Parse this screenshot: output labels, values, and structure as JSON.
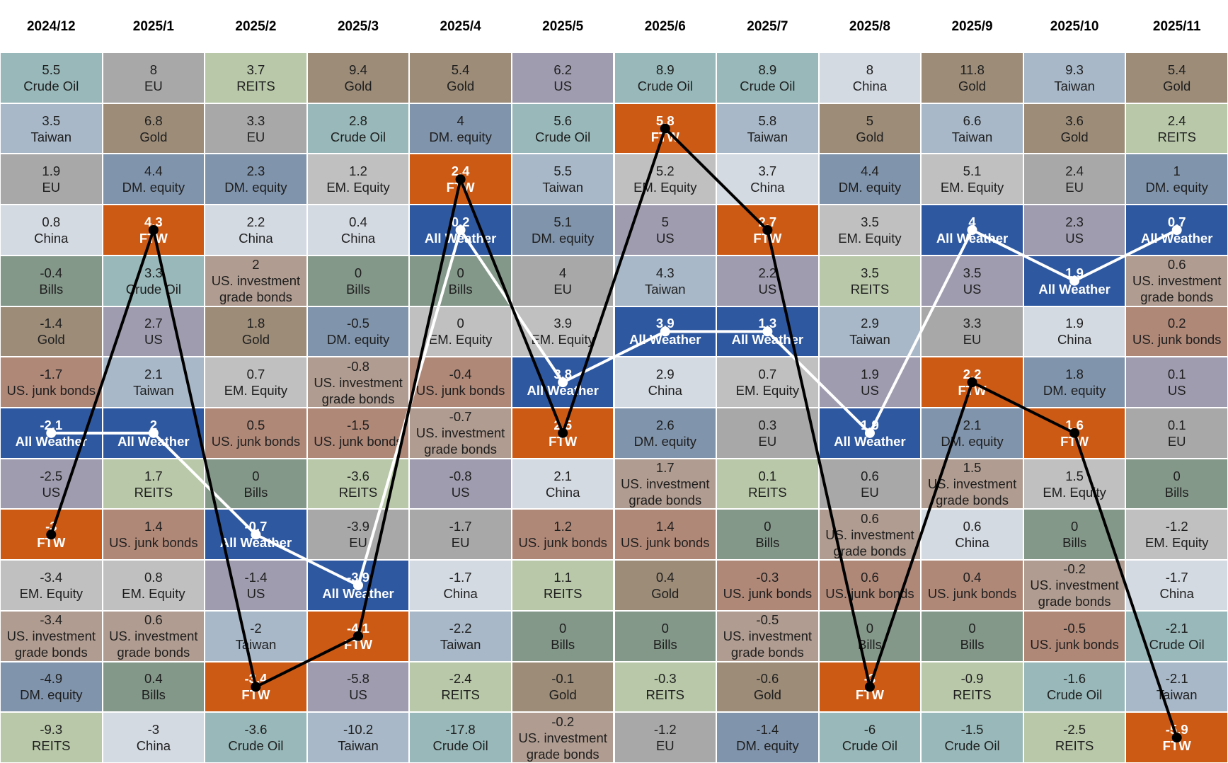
{
  "chart_data": {
    "type": "table",
    "title": "",
    "months": [
      "2024/12",
      "2025/1",
      "2025/2",
      "2025/3",
      "2025/4",
      "2025/5",
      "2025/6",
      "2025/7",
      "2025/8",
      "2025/9",
      "2025/10",
      "2025/11"
    ],
    "ranking_note": "each column is sorted from highest to lowest monthly return",
    "columns": [
      [
        [
          "5.5",
          "Crude Oil"
        ],
        [
          "3.5",
          "Taiwan"
        ],
        [
          "1.9",
          "EU"
        ],
        [
          "0.8",
          "China"
        ],
        [
          "-0.4",
          "Bills"
        ],
        [
          "-1.4",
          "Gold"
        ],
        [
          "-1.7",
          "US. junk bonds"
        ],
        [
          "-2.1",
          "All Weather"
        ],
        [
          "-2.5",
          "US"
        ],
        [
          "-3",
          "FTW"
        ],
        [
          "-3.4",
          "EM. Equity"
        ],
        [
          "-3.4",
          "US. investment grade bonds"
        ],
        [
          "-4.9",
          "DM. equity"
        ],
        [
          "-9.3",
          "REITS"
        ]
      ],
      [
        [
          "8",
          "EU"
        ],
        [
          "6.8",
          "Gold"
        ],
        [
          "4.4",
          "DM. equity"
        ],
        [
          "4.3",
          "FTW"
        ],
        [
          "3.3",
          "Crude Oil"
        ],
        [
          "2.7",
          "US"
        ],
        [
          "2.1",
          "Taiwan"
        ],
        [
          "2",
          "All Weather"
        ],
        [
          "1.7",
          "REITS"
        ],
        [
          "1.4",
          "US. junk bonds"
        ],
        [
          "0.8",
          "EM. Equity"
        ],
        [
          "0.6",
          "US. investment grade bonds"
        ],
        [
          "0.4",
          "Bills"
        ],
        [
          "-3",
          "China"
        ]
      ],
      [
        [
          "3.7",
          "REITS"
        ],
        [
          "3.3",
          "EU"
        ],
        [
          "2.3",
          "DM. equity"
        ],
        [
          "2.2",
          "China"
        ],
        [
          "2",
          "US. investment grade bonds"
        ],
        [
          "1.8",
          "Gold"
        ],
        [
          "0.7",
          "EM. Equity"
        ],
        [
          "0.5",
          "US. junk bonds"
        ],
        [
          "0",
          "Bills"
        ],
        [
          "-0.7",
          "All Weather"
        ],
        [
          "-1.4",
          "US"
        ],
        [
          "-2",
          "Taiwan"
        ],
        [
          "-3.4",
          "FTW"
        ],
        [
          "-3.6",
          "Crude Oil"
        ]
      ],
      [
        [
          "9.4",
          "Gold"
        ],
        [
          "2.8",
          "Crude Oil"
        ],
        [
          "1.2",
          "EM. Equity"
        ],
        [
          "0.4",
          "China"
        ],
        [
          "0",
          "Bills"
        ],
        [
          "-0.5",
          "DM. equity"
        ],
        [
          "-0.8",
          "US. investment grade bonds"
        ],
        [
          "-1.5",
          "US. junk bonds"
        ],
        [
          "-3.6",
          "REITS"
        ],
        [
          "-3.9",
          "EU"
        ],
        [
          "-3.9",
          "All Weather"
        ],
        [
          "-4.1",
          "FTW"
        ],
        [
          "-5.8",
          "US"
        ],
        [
          "-10.2",
          "Taiwan"
        ]
      ],
      [
        [
          "5.4",
          "Gold"
        ],
        [
          "4",
          "DM. equity"
        ],
        [
          "2.4",
          "FTW"
        ],
        [
          "0.2",
          "All Weather"
        ],
        [
          "0",
          "Bills"
        ],
        [
          "0",
          "EM. Equity"
        ],
        [
          "-0.4",
          "US. junk bonds"
        ],
        [
          "-0.7",
          "US. investment grade bonds"
        ],
        [
          "-0.8",
          "US"
        ],
        [
          "-1.7",
          "EU"
        ],
        [
          "-1.7",
          "China"
        ],
        [
          "-2.2",
          "Taiwan"
        ],
        [
          "-2.4",
          "REITS"
        ],
        [
          "-17.8",
          "Crude Oil"
        ]
      ],
      [
        [
          "6.2",
          "US"
        ],
        [
          "5.6",
          "Crude Oil"
        ],
        [
          "5.5",
          "Taiwan"
        ],
        [
          "5.1",
          "DM. equity"
        ],
        [
          "4",
          "EU"
        ],
        [
          "3.9",
          "EM. Equity"
        ],
        [
          "3.8",
          "All Weather"
        ],
        [
          "2.5",
          "FTW"
        ],
        [
          "2.1",
          "China"
        ],
        [
          "1.2",
          "US. junk bonds"
        ],
        [
          "1.1",
          "REITS"
        ],
        [
          "0",
          "Bills"
        ],
        [
          "-0.1",
          "Gold"
        ],
        [
          "-0.2",
          "US. investment grade bonds"
        ]
      ],
      [
        [
          "8.9",
          "Crude Oil"
        ],
        [
          "5.8",
          "FTW"
        ],
        [
          "5.2",
          "EM. Equity"
        ],
        [
          "5",
          "US"
        ],
        [
          "4.3",
          "Taiwan"
        ],
        [
          "3.9",
          "All Weather"
        ],
        [
          "2.9",
          "China"
        ],
        [
          "2.6",
          "DM. equity"
        ],
        [
          "1.7",
          "US. investment grade bonds"
        ],
        [
          "1.4",
          "US. junk bonds"
        ],
        [
          "0.4",
          "Gold"
        ],
        [
          "0",
          "Bills"
        ],
        [
          "-0.3",
          "REITS"
        ],
        [
          "-1.2",
          "EU"
        ]
      ],
      [
        [
          "8.9",
          "Crude Oil"
        ],
        [
          "5.8",
          "Taiwan"
        ],
        [
          "3.7",
          "China"
        ],
        [
          "2.7",
          "FTW"
        ],
        [
          "2.2",
          "US"
        ],
        [
          "1.3",
          "All Weather"
        ],
        [
          "0.7",
          "EM. Equity"
        ],
        [
          "0.3",
          "EU"
        ],
        [
          "0.1",
          "REITS"
        ],
        [
          "0",
          "Bills"
        ],
        [
          "-0.3",
          "US. junk bonds"
        ],
        [
          "-0.5",
          "US. investment grade bonds"
        ],
        [
          "-0.6",
          "Gold"
        ],
        [
          "-1.4",
          "DM. equity"
        ]
      ],
      [
        [
          "8",
          "China"
        ],
        [
          "5",
          "Gold"
        ],
        [
          "4.4",
          "DM. equity"
        ],
        [
          "3.5",
          "EM. Equity"
        ],
        [
          "3.5",
          "REITS"
        ],
        [
          "2.9",
          "Taiwan"
        ],
        [
          "1.9",
          "US"
        ],
        [
          "1.9",
          "All Weather"
        ],
        [
          "0.6",
          "EU"
        ],
        [
          "0.6",
          "US. investment grade bonds"
        ],
        [
          "0.6",
          "US. junk bonds"
        ],
        [
          "0",
          "Bills"
        ],
        [
          "-3",
          "FTW"
        ],
        [
          "-6",
          "Crude Oil"
        ]
      ],
      [
        [
          "11.8",
          "Gold"
        ],
        [
          "6.6",
          "Taiwan"
        ],
        [
          "5.1",
          "EM. Equity"
        ],
        [
          "4",
          "All Weather"
        ],
        [
          "3.5",
          "US"
        ],
        [
          "3.3",
          "EU"
        ],
        [
          "2.2",
          "FTW"
        ],
        [
          "2.1",
          "DM. equity"
        ],
        [
          "1.5",
          "US. investment grade bonds"
        ],
        [
          "0.6",
          "China"
        ],
        [
          "0.4",
          "US. junk bonds"
        ],
        [
          "0",
          "Bills"
        ],
        [
          "-0.9",
          "REITS"
        ],
        [
          "-1.5",
          "Crude Oil"
        ]
      ],
      [
        [
          "9.3",
          "Taiwan"
        ],
        [
          "3.6",
          "Gold"
        ],
        [
          "2.4",
          "EU"
        ],
        [
          "2.3",
          "US"
        ],
        [
          "1.9",
          "All Weather"
        ],
        [
          "1.9",
          "China"
        ],
        [
          "1.8",
          "DM. equity"
        ],
        [
          "1.6",
          "FTW"
        ],
        [
          "1.5",
          "EM. Equity"
        ],
        [
          "0",
          "Bills"
        ],
        [
          "-0.2",
          "US. investment grade bonds"
        ],
        [
          "-0.5",
          "US. junk bonds"
        ],
        [
          "-1.6",
          "Crude Oil"
        ],
        [
          "-2.5",
          "REITS"
        ]
      ],
      [
        [
          "5.4",
          "Gold"
        ],
        [
          "2.4",
          "REITS"
        ],
        [
          "1",
          "DM. equity"
        ],
        [
          "0.7",
          "All Weather"
        ],
        [
          "0.6",
          "US. investment grade bonds"
        ],
        [
          "0.2",
          "US. junk bonds"
        ],
        [
          "0.1",
          "US"
        ],
        [
          "0.1",
          "EU"
        ],
        [
          "0",
          "Bills"
        ],
        [
          "-1.2",
          "EM. Equity"
        ],
        [
          "-1.7",
          "China"
        ],
        [
          "-2.1",
          "Crude Oil"
        ],
        [
          "-2.1",
          "Taiwan"
        ],
        [
          "-5.9",
          "FTW"
        ]
      ]
    ],
    "highlighted_series": [
      {
        "name": "All Weather",
        "line_color": "#ffffff"
      },
      {
        "name": "FTW",
        "line_color": "#000000"
      }
    ],
    "asset_colors": {
      "Crude Oil": "#98b8b9",
      "EU": "#a8a8a8",
      "REITS": "#b8c8a8",
      "Gold": "#9c8c78",
      "US": "#a09cb0",
      "China": "#d4dae2",
      "Taiwan": "#a8b8c8",
      "DM. equity": "#8094ac",
      "EM. Equity": "#c0c0c0",
      "Bills": "#84988a",
      "US. junk bonds": "#b08878",
      "US. investment grade bonds": "#b09c90",
      "All Weather": "#2e58a0",
      "FTW": "#cc5a14"
    }
  }
}
